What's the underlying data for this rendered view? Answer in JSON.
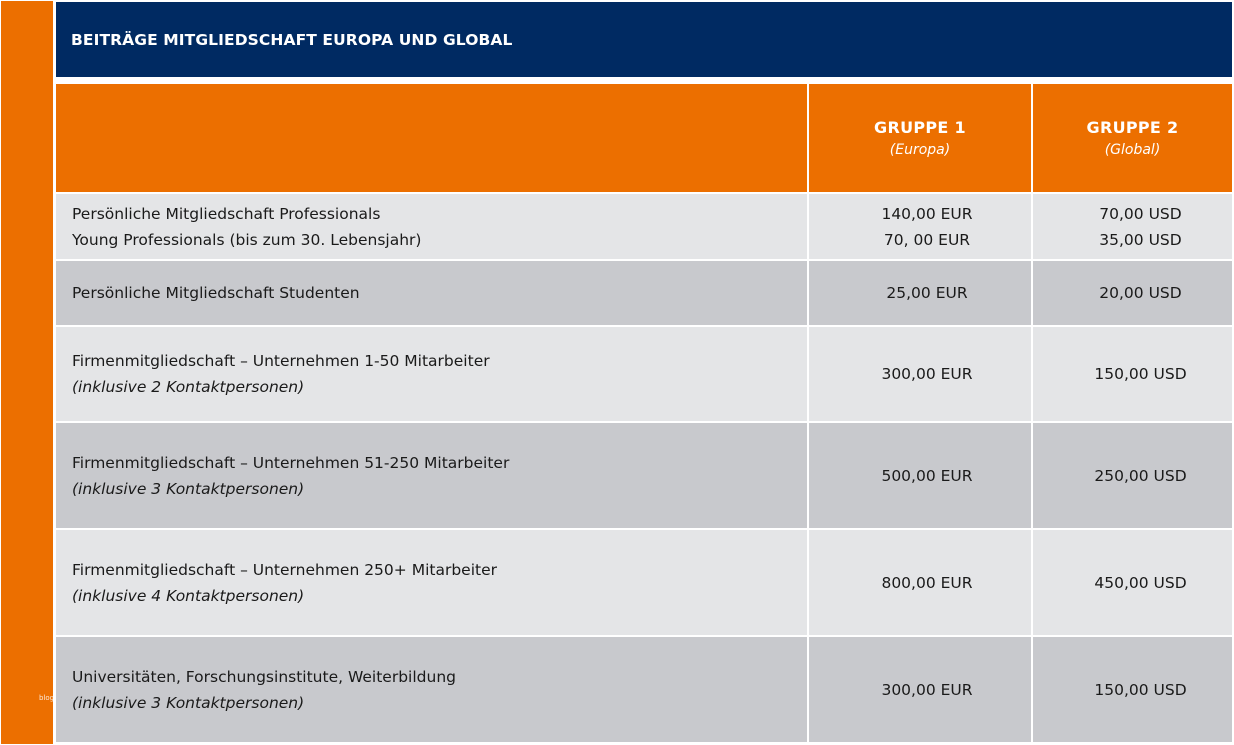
{
  "title": "BEITRÄGE MITGLIEDSCHAFT EUROPA UND GLOBAL",
  "side_mark": "blog",
  "colors": {
    "accent_orange": "#ec6f00",
    "navy": "#002a62",
    "row_light": "#e4e5e7",
    "row_dark": "#c8c9cd"
  },
  "header": {
    "group1": {
      "title": "GRUPPE 1",
      "subtitle": "(Europa)"
    },
    "group2": {
      "title": "GRUPPE 2",
      "subtitle": "(Global)"
    }
  },
  "rows": [
    {
      "label_line1": "Persönliche Mitgliedschaft Professionals",
      "label_line2": "Young Professionals (bis zum 30. Lebensjahr)",
      "g1_line1": "140,00 EUR",
      "g1_line2": "70, 00 EUR",
      "g2_line1": "70,00 USD",
      "g2_line2": "35,00 USD"
    },
    {
      "label_line1": "Persönliche Mitgliedschaft Studenten",
      "g1": "25,00 EUR",
      "g2": "20,00 USD"
    },
    {
      "label_line1": "Firmenmitgliedschaft – Unternehmen 1-50 Mitarbeiter",
      "label_line2": "(inklusive 2 Kontaktpersonen)",
      "g1": "300,00 EUR",
      "g2": "150,00 USD"
    },
    {
      "label_line1": "Firmenmitgliedschaft – Unternehmen 51-250 Mitarbeiter",
      "label_line2": "(inklusive 3 Kontaktpersonen)",
      "g1": "500,00 EUR",
      "g2": "250,00 USD"
    },
    {
      "label_line1": "Firmenmitgliedschaft – Unternehmen 250+ Mitarbeiter",
      "label_line2": "(inklusive 4 Kontaktpersonen)",
      "g1": "800,00 EUR",
      "g2": "450,00 USD"
    },
    {
      "label_line1": "Universitäten, Forschungsinstitute, Weiterbildung",
      "label_line2": "(inklusive 3 Kontaktpersonen)",
      "g1": "300,00 EUR",
      "g2": "150,00 USD"
    }
  ]
}
